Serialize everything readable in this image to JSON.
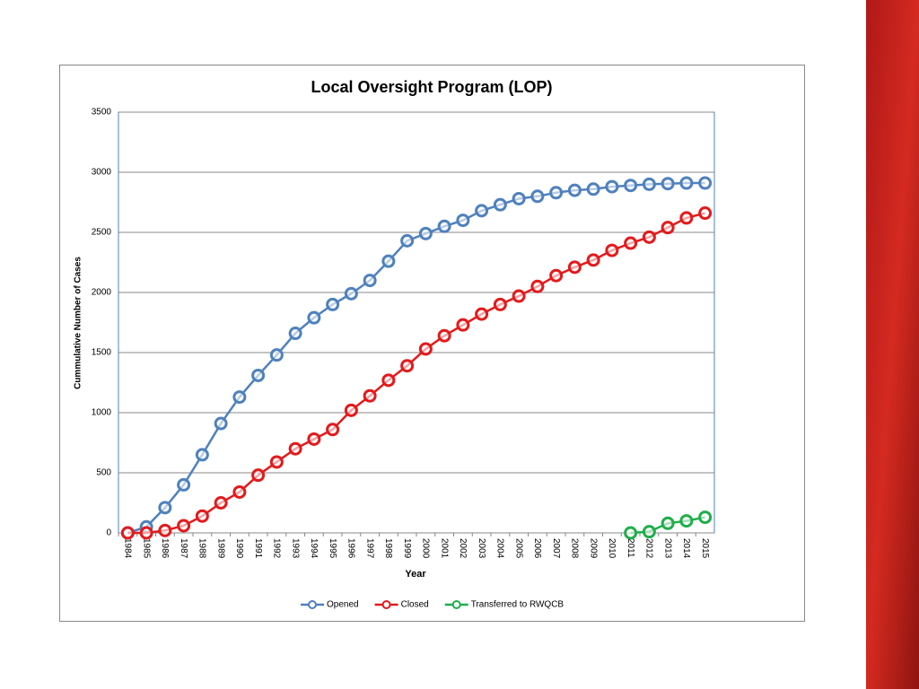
{
  "chart_data": {
    "type": "line",
    "title": "Local Oversight Program (LOP)",
    "x_label": "Year",
    "y_label": "Cummulative Number of Cases",
    "categories": [
      "1984",
      "1985",
      "1986",
      "1987",
      "1988",
      "1989",
      "1990",
      "1991",
      "1992",
      "1993",
      "1994",
      "1995",
      "1996",
      "1997",
      "1998",
      "1999",
      "2000",
      "2001",
      "2002",
      "2003",
      "2004",
      "2005",
      "2006",
      "2007",
      "2008",
      "2009",
      "2010",
      "2011",
      "2012",
      "2013",
      "2014",
      "2015"
    ],
    "series": [
      {
        "name": "Opened",
        "color": "#4f81bd",
        "values": [
          0,
          50,
          210,
          400,
          650,
          910,
          1130,
          1310,
          1480,
          1660,
          1790,
          1900,
          1990,
          2100,
          2260,
          2430,
          2490,
          2550,
          2600,
          2680,
          2730,
          2780,
          2800,
          2830,
          2850,
          2860,
          2880,
          2890,
          2900,
          2905,
          2910,
          2910
        ]
      },
      {
        "name": "Closed",
        "color": "#e31a1c",
        "values": [
          0,
          0,
          20,
          60,
          140,
          250,
          340,
          480,
          590,
          700,
          780,
          860,
          1020,
          1140,
          1270,
          1390,
          1530,
          1640,
          1730,
          1820,
          1900,
          1970,
          2050,
          2140,
          2210,
          2270,
          2350,
          2410,
          2460,
          2540,
          2620,
          2660
        ]
      },
      {
        "name": "Transferred to RWQCB",
        "color": "#1fae4b",
        "values": [
          null,
          null,
          null,
          null,
          null,
          null,
          null,
          null,
          null,
          null,
          null,
          null,
          null,
          null,
          null,
          null,
          null,
          null,
          null,
          null,
          null,
          null,
          null,
          null,
          null,
          null,
          null,
          0,
          10,
          80,
          100,
          130
        ]
      }
    ],
    "ylim": [
      0,
      3500
    ],
    "yticks": [
      0,
      500,
      1000,
      1500,
      2000,
      2500,
      3000,
      3500
    ],
    "grid": true,
    "legend": "bottom"
  }
}
